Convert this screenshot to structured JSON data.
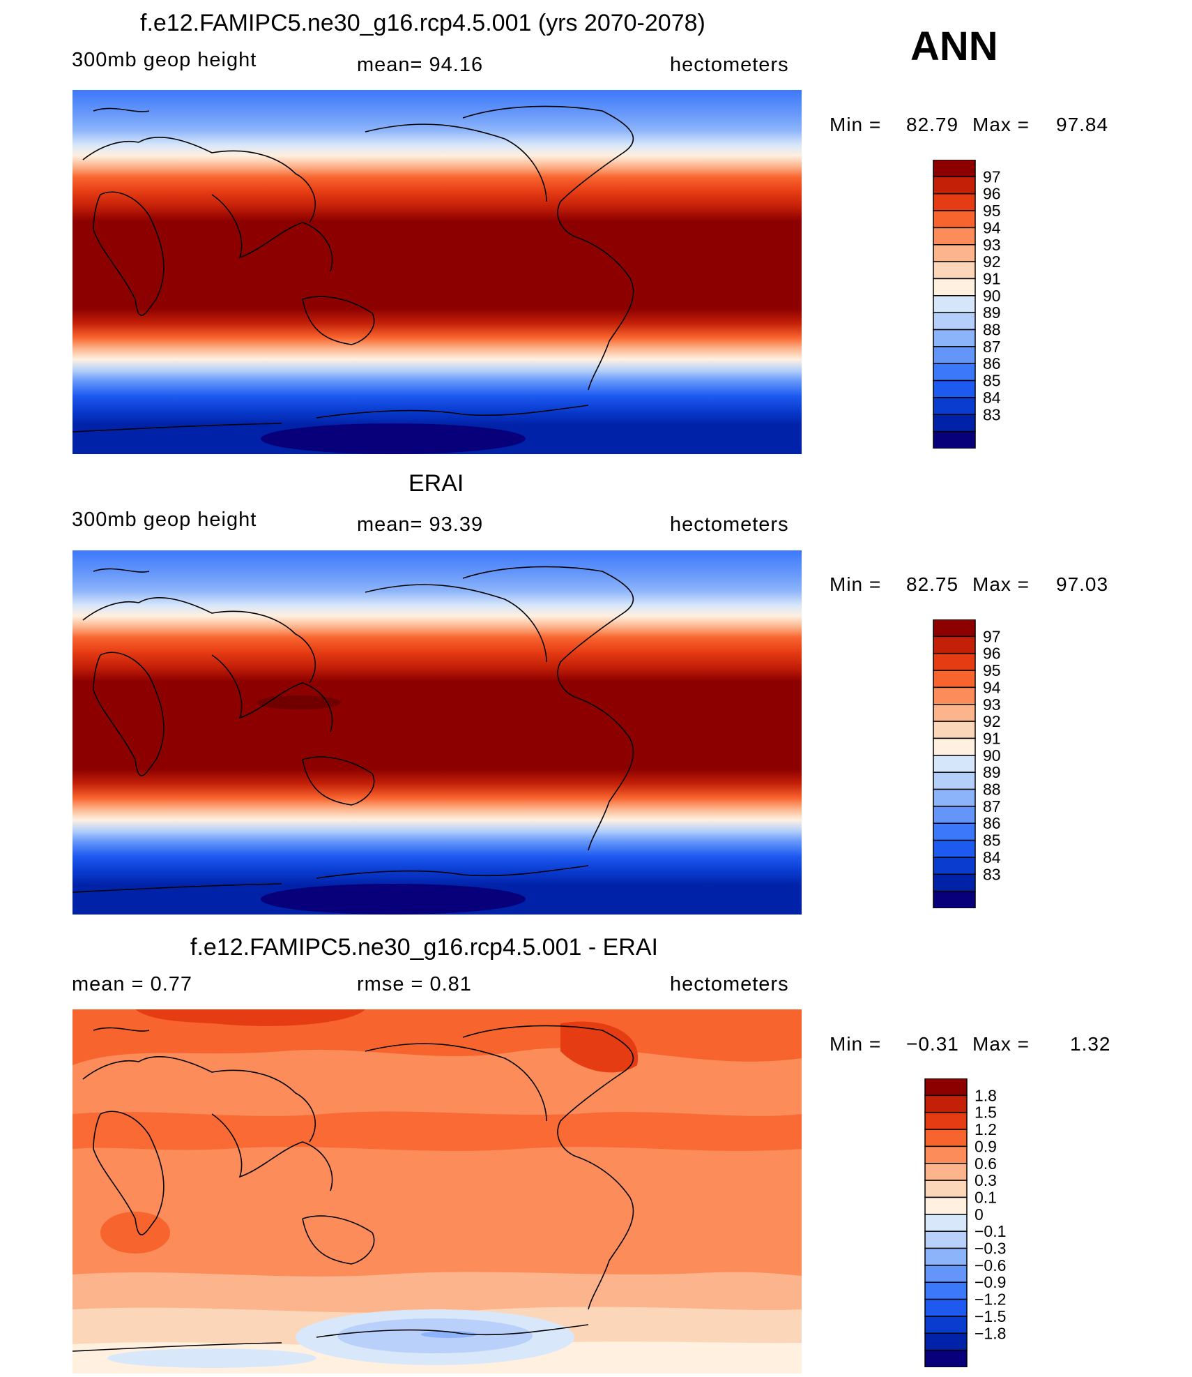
{
  "season": "ANN",
  "colors": {
    "full": [
      "#08007a",
      "#0022a8",
      "#0a3cd0",
      "#1e5af0",
      "#3c78fa",
      "#6496fa",
      "#8cb4fa",
      "#b4d0fa",
      "#d6e6fa",
      "#fff0e0",
      "#fcd6b8",
      "#fcb48c",
      "#fc8c5a",
      "#f8642e",
      "#e63c14",
      "#c42008",
      "#8c0000"
    ],
    "diff": [
      "#08007a",
      "#0022a8",
      "#0a3cd0",
      "#1e5af0",
      "#3c78fa",
      "#6496fa",
      "#8cb4fa",
      "#b8d0fa",
      "#d8e8fa",
      "#fff0e0",
      "#fcd6b8",
      "#fcb48c",
      "#fc8c5a",
      "#f8642e",
      "#e63c14",
      "#c42008",
      "#8c0000"
    ]
  },
  "panels": [
    {
      "title": "f.e12.FAMIPC5.ne30_g16.rcp4.5.001 (yrs 2070-2078)",
      "left": "300mb  geop  height",
      "center": "mean=   94.16",
      "right": "hectometers",
      "min_label": "Min  =",
      "min_value": "82.79",
      "max_label": "Max  =",
      "max_value": "97.84",
      "levels": [
        "97",
        "96",
        "95",
        "94",
        "93",
        "92",
        "91",
        "90",
        "89",
        "88",
        "87",
        "86",
        "85",
        "84",
        "83"
      ]
    },
    {
      "title": "ERAI",
      "left": "300mb  geop  height",
      "center": "mean=   93.39",
      "right": "hectometers",
      "min_label": "Min  =",
      "min_value": "82.75",
      "max_label": "Max  =",
      "max_value": "97.03",
      "levels": [
        "97",
        "96",
        "95",
        "94",
        "93",
        "92",
        "91",
        "90",
        "89",
        "88",
        "87",
        "86",
        "85",
        "84",
        "83"
      ]
    },
    {
      "title": "f.e12.FAMIPC5.ne30_g16.rcp4.5.001 - ERAI",
      "left": "mean  =      0.77",
      "center": "rmse  =      0.81",
      "right": "hectometers",
      "min_label": "Min  =",
      "min_value": "−0.31",
      "max_label": "Max  =",
      "max_value": "1.32",
      "levels": [
        "1.8",
        "1.5",
        "1.2",
        "0.9",
        "0.6",
        "0.3",
        "0.1",
        "0",
        "−0.1",
        "−0.3",
        "−0.6",
        "−0.9",
        "−1.2",
        "−1.5",
        "−1.8"
      ]
    }
  ]
}
